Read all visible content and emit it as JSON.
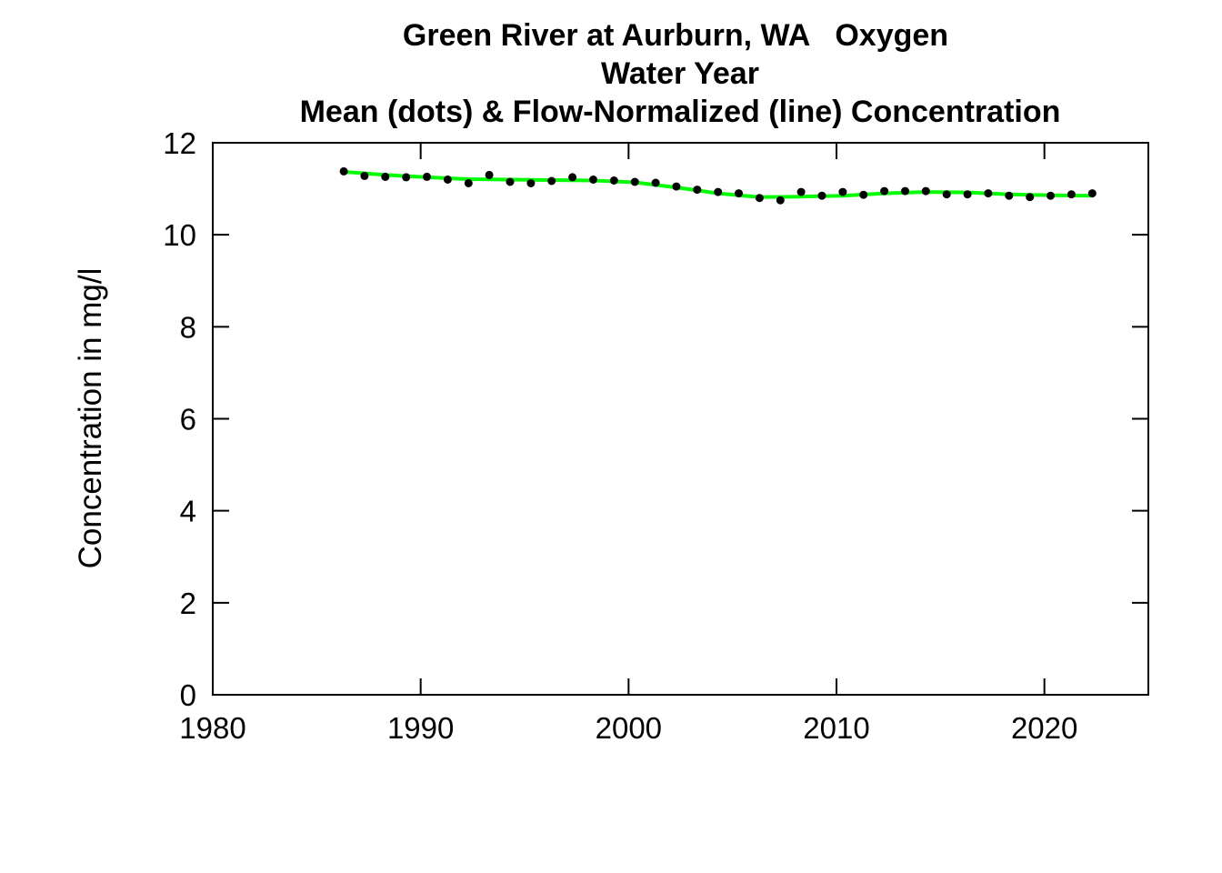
{
  "chart_data": {
    "type": "line",
    "title_lines": [
      "Green River at Aurburn, WA   Oxygen",
      "Water Year",
      "Mean (dots) & Flow-Normalized (line) Concentration"
    ],
    "xlabel": "",
    "ylabel": "Concentration in mg/l",
    "xlim": [
      1980,
      2025
    ],
    "ylim": [
      0,
      12
    ],
    "xticks": [
      1980,
      1990,
      2000,
      2010,
      2020
    ],
    "yticks": [
      0,
      2,
      4,
      6,
      8,
      10,
      12
    ],
    "grid": false,
    "legend": "none",
    "series": [
      {
        "kind": "points",
        "color": "#000000",
        "x": [
          1986.3,
          1987.3,
          1988.3,
          1989.3,
          1990.3,
          1991.3,
          1992.3,
          1993.3,
          1994.3,
          1995.3,
          1996.3,
          1997.3,
          1998.3,
          1999.3,
          2000.3,
          2001.3,
          2002.3,
          2003.3,
          2004.3,
          2005.3,
          2006.3,
          2007.3,
          2008.3,
          2009.3,
          2010.3,
          2011.3,
          2012.3,
          2013.3,
          2014.3,
          2015.3,
          2016.3,
          2017.3,
          2018.3,
          2019.3,
          2020.3,
          2021.3,
          2022.3
        ],
        "y": [
          11.38,
          11.28,
          11.26,
          11.25,
          11.26,
          11.2,
          11.12,
          11.3,
          11.15,
          11.12,
          11.17,
          11.25,
          11.2,
          11.18,
          11.15,
          11.13,
          11.05,
          10.98,
          10.93,
          10.9,
          10.8,
          10.75,
          10.93,
          10.85,
          10.93,
          10.87,
          10.95,
          10.95,
          10.95,
          10.88,
          10.88,
          10.9,
          10.85,
          10.82,
          10.85,
          10.88,
          10.9
        ]
      },
      {
        "kind": "line",
        "color": "#00ff00",
        "x": [
          1986.3,
          1988.3,
          1990.3,
          1992.3,
          1994.3,
          1996.3,
          1998.3,
          2000.3,
          2002.3,
          2004.3,
          2006.3,
          2008.3,
          2010.3,
          2012.3,
          2014.3,
          2016.3,
          2018.3,
          2020.3,
          2022.3
        ],
        "y": [
          11.37,
          11.3,
          11.25,
          11.21,
          11.2,
          11.19,
          11.18,
          11.14,
          11.03,
          10.9,
          10.82,
          10.83,
          10.85,
          10.9,
          10.93,
          10.92,
          10.88,
          10.86,
          10.85
        ]
      }
    ]
  }
}
